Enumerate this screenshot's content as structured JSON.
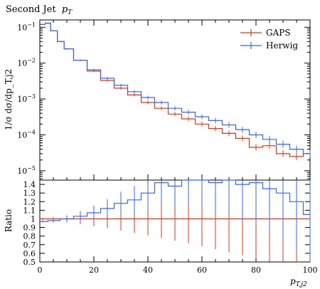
{
  "chart_data": [
    {
      "type": "line",
      "panel": "main",
      "title": "Second Jet p_T",
      "title_text": "Second Jet",
      "title_var": "p",
      "title_sub": "T",
      "ylabel": "1/σ dσ/dp_T,j2",
      "xlim": [
        0,
        100
      ],
      "ylim": [
        5.5e-06,
        0.16
      ],
      "yscale": "log",
      "grid": false,
      "legend_position": "top-right",
      "yticks": [
        {
          "value": 0.1,
          "mantissa": "10",
          "exp": "−1"
        },
        {
          "value": 0.01,
          "mantissa": "10",
          "exp": "−2"
        },
        {
          "value": 0.001,
          "mantissa": "10",
          "exp": "−3"
        },
        {
          "value": 0.0001,
          "mantissa": "10",
          "exp": "−4"
        },
        {
          "value": 1e-05,
          "mantissa": "10",
          "exp": "−5"
        }
      ],
      "x": [
        1,
        3,
        5,
        8,
        10,
        15,
        20,
        25,
        30,
        35,
        40,
        45,
        50,
        55,
        60,
        65,
        70,
        75,
        80,
        85,
        90,
        95,
        100
      ],
      "series": [
        {
          "name": "GAPS",
          "color": "#ee3311",
          "values": [
            0.12,
            0.13,
            0.08,
            0.04,
            0.025,
            0.012,
            0.006,
            0.0033,
            0.002,
            0.0013,
            0.0008,
            0.00055,
            0.00038,
            0.00028,
            0.0002,
            0.00015,
            0.00011,
            8e-05,
            4.5e-05,
            5e-05,
            3e-05,
            2.5e-05,
            3e-05
          ]
        },
        {
          "name": "Herwig",
          "color": "#3366ff",
          "values": [
            0.12,
            0.13,
            0.08,
            0.04,
            0.025,
            0.012,
            0.0065,
            0.0038,
            0.0024,
            0.0016,
            0.0011,
            0.0008,
            0.00055,
            0.00043,
            0.00032,
            0.00025,
            0.00019,
            0.00014,
            0.0001,
            7.5e-05,
            5.5e-05,
            4e-05,
            3e-05
          ]
        }
      ]
    },
    {
      "type": "line",
      "panel": "ratio",
      "ylabel": "Ratio",
      "xlabel": "p_T,j2",
      "xlabel_var": "p",
      "xlabel_sub": "T,j2",
      "xlim": [
        0,
        100
      ],
      "ylim": [
        0.5,
        1.45
      ],
      "xticks": [
        0,
        20,
        40,
        60,
        80,
        100
      ],
      "yticks": [
        0.5,
        0.6,
        0.7,
        0.8,
        0.9,
        1,
        1.1,
        1.2,
        1.3,
        1.4
      ],
      "x": [
        1,
        5,
        10,
        15,
        20,
        25,
        30,
        35,
        40,
        45,
        50,
        55,
        60,
        65,
        70,
        75,
        80,
        85,
        90,
        95,
        100
      ],
      "series": [
        {
          "name": "GAPS",
          "color": "#ee3311",
          "values": [
            1,
            1,
            1,
            1,
            1,
            1,
            1,
            1,
            1,
            1,
            1,
            1,
            1,
            1,
            1,
            1,
            1,
            1,
            1,
            1,
            1
          ]
        },
        {
          "name": "Herwig",
          "color": "#3366ff",
          "values": [
            0.97,
            0.98,
            1.0,
            1.03,
            1.07,
            1.12,
            1.18,
            1.22,
            1.3,
            1.42,
            1.38,
            1.45,
            1.45,
            1.42,
            1.45,
            1.4,
            1.42,
            1.35,
            1.3,
            1.2,
            1.05
          ]
        }
      ]
    }
  ]
}
